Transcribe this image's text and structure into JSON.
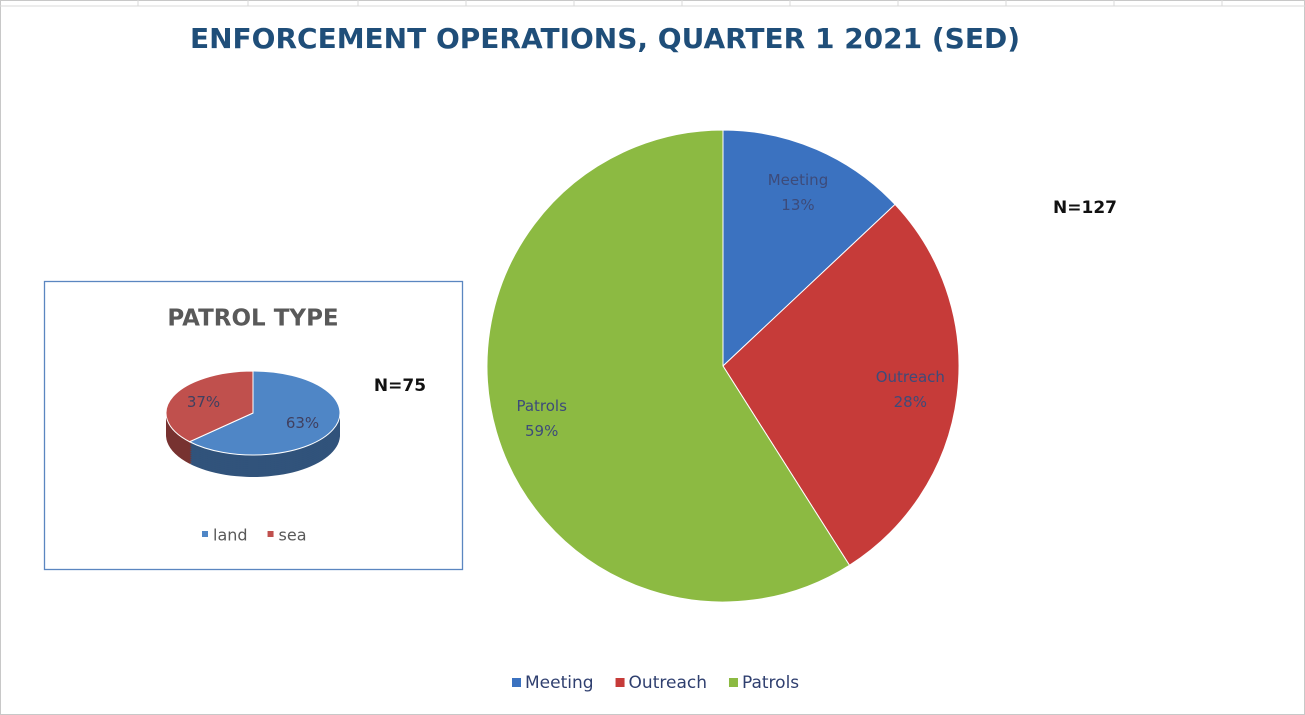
{
  "chart_data": [
    {
      "type": "pie",
      "title": "ENFORCEMENT OPERATIONS, QUARTER 1 2021 (SED)",
      "annotation": "N=127",
      "categories": [
        "Meeting",
        "Outreach",
        "Patrols"
      ],
      "values": [
        13,
        28,
        59
      ],
      "value_labels": [
        "13%",
        "28%",
        "59%"
      ],
      "colors": [
        "#3b72c0",
        "#c63b39",
        "#8cba42"
      ],
      "legend": "bottom"
    },
    {
      "type": "pie3d",
      "title": "PATROL TYPE",
      "annotation": "N=75",
      "categories": [
        "land",
        "sea"
      ],
      "values": [
        63,
        37
      ],
      "value_labels": [
        "63%",
        "37%"
      ],
      "colors": [
        "#4f86c6",
        "#c0504d"
      ],
      "legend": "bottom"
    }
  ]
}
